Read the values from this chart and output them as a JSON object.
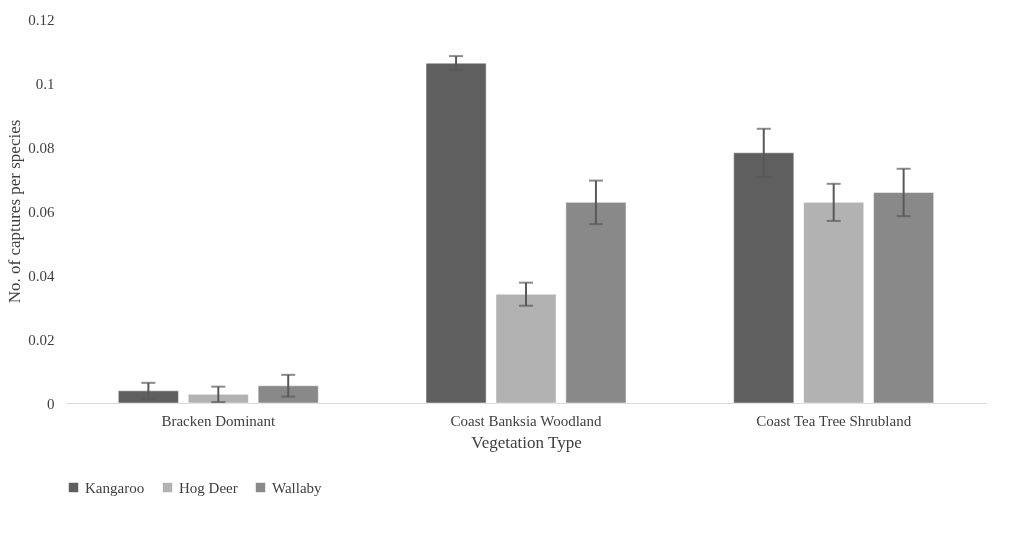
{
  "chart_data": {
    "type": "bar",
    "xlabel": "Vegetation Type",
    "ylabel": "No. of captures per species",
    "categories": [
      "Bracken Dominant",
      "Coast Banksia Woodland",
      "Coast Tea Tree Shrubland"
    ],
    "series": [
      {
        "name": "Kangaroo",
        "color": "#5f5f5f",
        "values": [
          0.0038,
          0.1062,
          0.0782
        ],
        "errors": [
          0.0025,
          0.0022,
          0.0075
        ]
      },
      {
        "name": "Hog Deer",
        "color": "#b2b2b2",
        "values": [
          0.0027,
          0.034,
          0.0627
        ],
        "errors": [
          0.0024,
          0.0036,
          0.0058
        ]
      },
      {
        "name": "Wallaby",
        "color": "#898989",
        "values": [
          0.0054,
          0.0627,
          0.0658
        ],
        "errors": [
          0.0034,
          0.0068,
          0.0074
        ]
      }
    ],
    "ylim": [
      0,
      0.12
    ],
    "yticks": [
      0,
      0.02,
      0.04,
      0.06,
      0.08,
      0.1,
      0.12
    ],
    "grid": false,
    "legend": "bottom"
  }
}
